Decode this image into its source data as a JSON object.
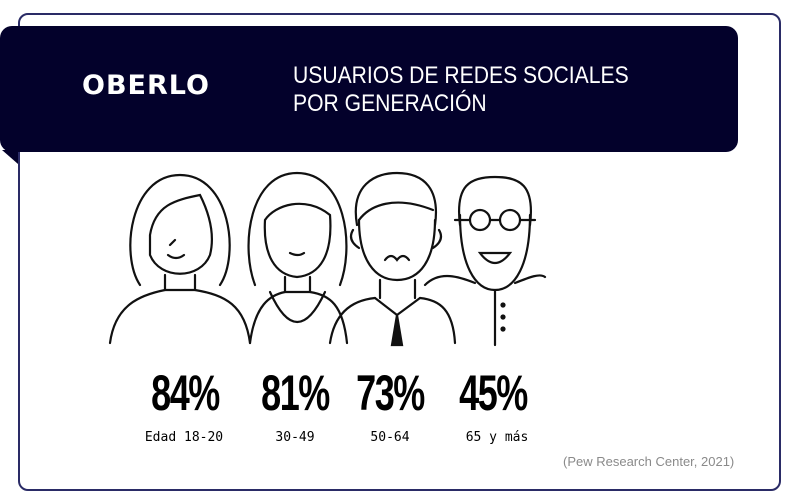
{
  "brand": "OBERLO",
  "title_lines": [
    "USUARIOS DE REDES SOCIALES",
    "POR GENERACIÓN"
  ],
  "stats": [
    {
      "value": "84%",
      "label": "Edad 18-20"
    },
    {
      "value": "81%",
      "label": "30-49"
    },
    {
      "value": "73%",
      "label": "50-64"
    },
    {
      "value": "45%",
      "label": "65 y más"
    }
  ],
  "source": "(Pew Research Center, 2021)",
  "colors": {
    "banner": "#03012b",
    "frame": "#2a2b66",
    "source_text": "#8a8a8a"
  }
}
